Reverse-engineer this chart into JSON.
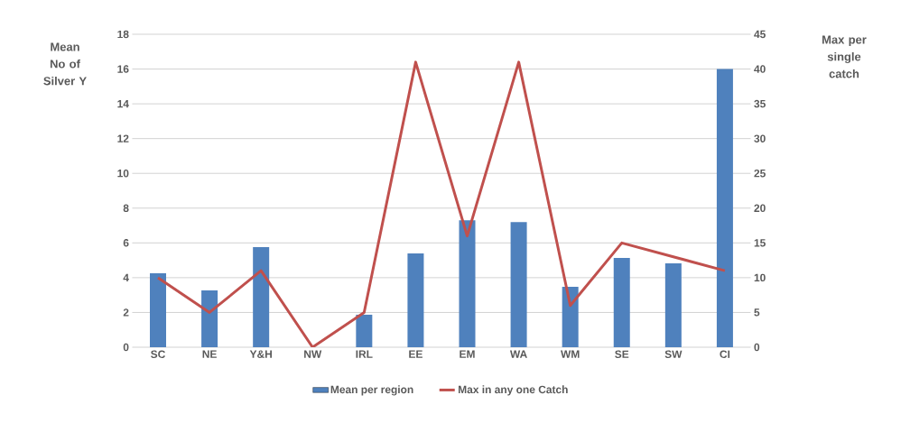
{
  "chart_data": {
    "type": "bar",
    "ylabel": "Mean No of Silver Y",
    "y2label": "Max per single catch",
    "categories": [
      "SC",
      "NE",
      "Y&H",
      "NW",
      "IRL",
      "EE",
      "EM",
      "WA",
      "WM",
      "SE",
      "SW",
      "CI"
    ],
    "series": [
      {
        "name": "Mean per region",
        "color": "#4f81bd",
        "values": [
          4.25,
          3.27,
          5.76,
          0,
          1.87,
          5.4,
          7.3,
          7.2,
          3.47,
          5.13,
          4.82,
          16.0
        ]
      },
      {
        "name": "Max in any one Catch",
        "type": "line",
        "axis": "y2",
        "color": "#c0504d",
        "values": [
          10,
          5,
          11,
          0,
          5,
          41,
          16,
          41,
          6,
          15,
          13,
          11
        ]
      }
    ],
    "ylim": [
      0,
      18
    ],
    "yticks": [
      0,
      2,
      4,
      6,
      8,
      10,
      12,
      14,
      16,
      18
    ],
    "y2lim": [
      0,
      45
    ],
    "y2ticks": [
      0,
      5,
      10,
      15,
      20,
      25,
      30,
      35,
      40,
      45
    ],
    "grid": "y",
    "legend": "bottom"
  }
}
